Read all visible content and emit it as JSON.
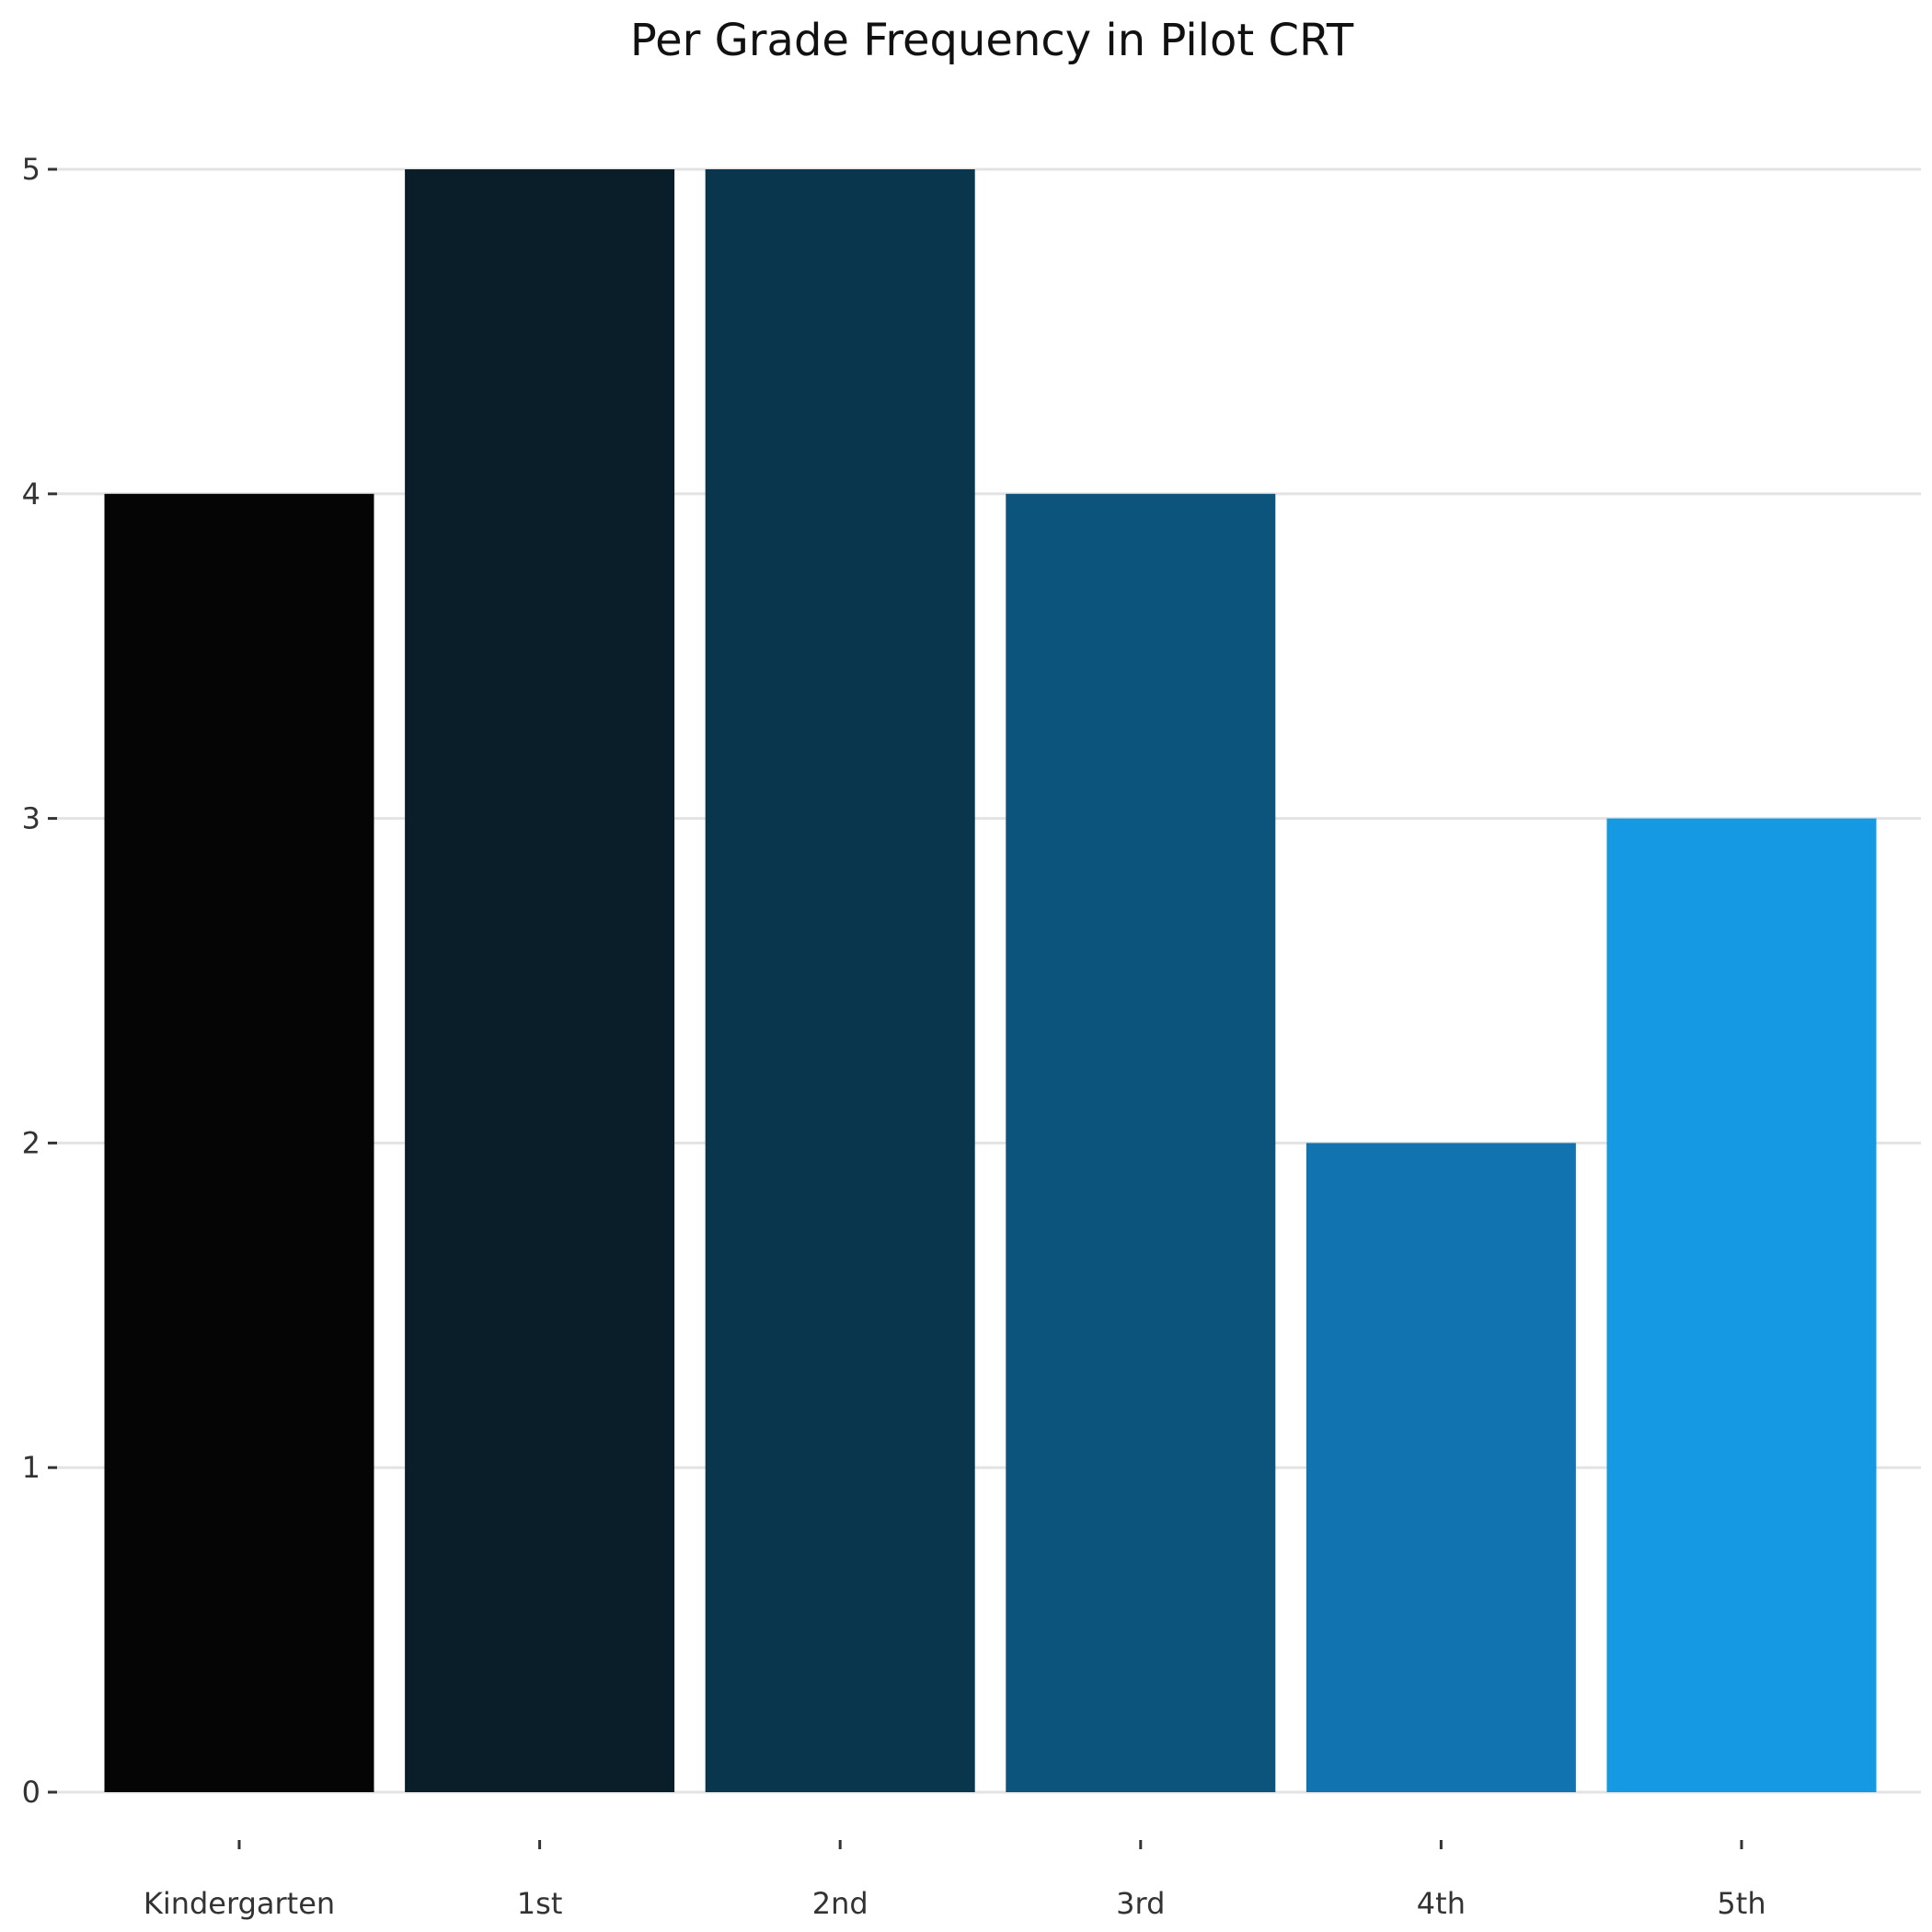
{
  "chart_data": {
    "type": "bar",
    "title": "Per Grade Frequency in Pilot CRT",
    "xlabel": "",
    "ylabel": "",
    "categories": [
      "Kindergarten",
      "1st",
      "2nd",
      "3rd",
      "4th",
      "5th"
    ],
    "values": [
      4,
      5,
      5,
      4,
      2,
      3
    ],
    "colors": [
      "#050505",
      "#0a1e2a",
      "#0a364d",
      "#0d547c",
      "#1174b0",
      "#1599e2"
    ],
    "ylim": [
      0,
      5
    ],
    "yticks": [
      0,
      1,
      2,
      3,
      4,
      5
    ],
    "grid": true,
    "gridColor": "#e3e3e3",
    "legend": "none"
  }
}
